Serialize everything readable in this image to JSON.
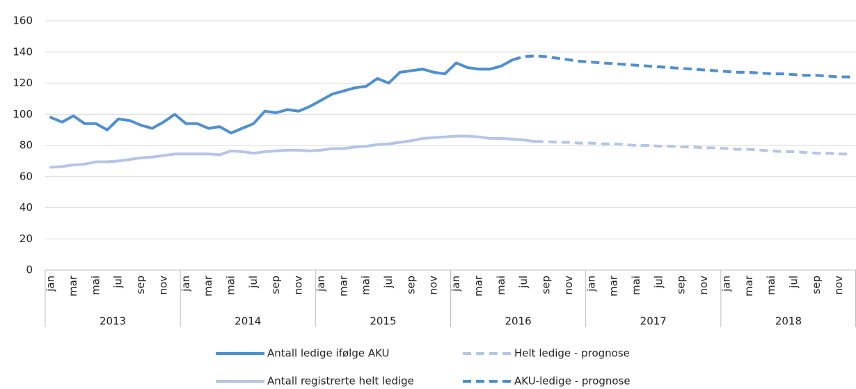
{
  "chart_data": {
    "type": "line",
    "categories": [
      "jan",
      null,
      "mar",
      null,
      "mai",
      null,
      "jul",
      null,
      "sep",
      null,
      "nov",
      null,
      "jan",
      null,
      "mar",
      null,
      "mai",
      null,
      "jul",
      null,
      "sep",
      null,
      "nov",
      null,
      "jan",
      null,
      "mar",
      null,
      "mai",
      null,
      "jul",
      null,
      "sep",
      null,
      "nov",
      null,
      "jan",
      null,
      "mar",
      null,
      "mai",
      null,
      "jul",
      null,
      "sep",
      null,
      "nov",
      null,
      "jan",
      null,
      "mar",
      null,
      "mai",
      null,
      "jul",
      null,
      "sep",
      null,
      "nov",
      null,
      "jan",
      null,
      "mar",
      null,
      "mai",
      null,
      "jul",
      null,
      "sep",
      null,
      "nov",
      null
    ],
    "x_groups": [
      "2013",
      "2014",
      "2015",
      "2016",
      "2017",
      "2018"
    ],
    "ylim": [
      0,
      160
    ],
    "yticks": [
      0,
      20,
      40,
      60,
      80,
      100,
      120,
      140,
      160
    ],
    "grid": true,
    "series": [
      {
        "name": "Antall ledige ifølge AKU",
        "color": "#4e8fd0",
        "dashed": false,
        "values": [
          98,
          95,
          99,
          94,
          94,
          90,
          97,
          96,
          93,
          91,
          95,
          100,
          94,
          94,
          91,
          92,
          88,
          91,
          94,
          102,
          101,
          103,
          102,
          105,
          109,
          113,
          115,
          117,
          118,
          123,
          120,
          127,
          128,
          129,
          127,
          126,
          133,
          130,
          129,
          129,
          131,
          135,
          null,
          null,
          null,
          null,
          null,
          null,
          null,
          null,
          null,
          null,
          null,
          null,
          null,
          null,
          null,
          null,
          null,
          null,
          null,
          null,
          null,
          null,
          null,
          null,
          null,
          null,
          null,
          null,
          null,
          null
        ]
      },
      {
        "name": "Helt ledige - prognose",
        "color": "#b4c6e7",
        "dashed": true,
        "values": [
          null,
          null,
          null,
          null,
          null,
          null,
          null,
          null,
          null,
          null,
          null,
          null,
          null,
          null,
          null,
          null,
          null,
          null,
          null,
          null,
          null,
          null,
          null,
          null,
          null,
          null,
          null,
          null,
          null,
          null,
          null,
          null,
          null,
          null,
          null,
          null,
          null,
          null,
          null,
          null,
          null,
          null,
          null,
          82.5,
          82.5,
          82,
          82,
          81.5,
          81.5,
          81,
          81,
          80.5,
          80,
          80,
          79.5,
          79.5,
          79,
          79,
          78.5,
          78.5,
          78,
          77.5,
          77.5,
          77,
          76.5,
          76,
          76,
          75.5,
          75,
          75,
          74.5,
          74.5
        ]
      },
      {
        "name": "Antall registrerte helt ledige",
        "color": "#b4c6e7",
        "dashed": false,
        "values": [
          66,
          66.5,
          67.5,
          68,
          69.5,
          69.5,
          70,
          71,
          72,
          72.5,
          73.5,
          74.5,
          74.5,
          74.5,
          74.5,
          74,
          76.5,
          76,
          75,
          76,
          76.5,
          77,
          77,
          76.5,
          77,
          78,
          78,
          79,
          79.5,
          80.5,
          81,
          82,
          83,
          84.5,
          85,
          85.5,
          86,
          86,
          85.5,
          84.5,
          84.5,
          84,
          83.5,
          82.5,
          null,
          null,
          null,
          null,
          null,
          null,
          null,
          null,
          null,
          null,
          null,
          null,
          null,
          null,
          null,
          null,
          null,
          null,
          null,
          null,
          null,
          null,
          null,
          null,
          null,
          null,
          null,
          null
        ]
      },
      {
        "name": "AKU-ledige - prognose",
        "color": "#4e8fd0",
        "dashed": true,
        "values": [
          null,
          null,
          null,
          null,
          null,
          null,
          null,
          null,
          null,
          null,
          null,
          null,
          null,
          null,
          null,
          null,
          null,
          null,
          null,
          null,
          null,
          null,
          null,
          null,
          null,
          null,
          null,
          null,
          null,
          null,
          null,
          null,
          null,
          null,
          null,
          null,
          null,
          null,
          null,
          null,
          null,
          135,
          137,
          137.5,
          137,
          136,
          135,
          134,
          133.5,
          133,
          132.5,
          132,
          131.5,
          131,
          130.5,
          130,
          129.5,
          129,
          128.5,
          128,
          127.5,
          127,
          127,
          126.5,
          126,
          126,
          125.5,
          125,
          125,
          124.5,
          124,
          124
        ]
      }
    ]
  }
}
